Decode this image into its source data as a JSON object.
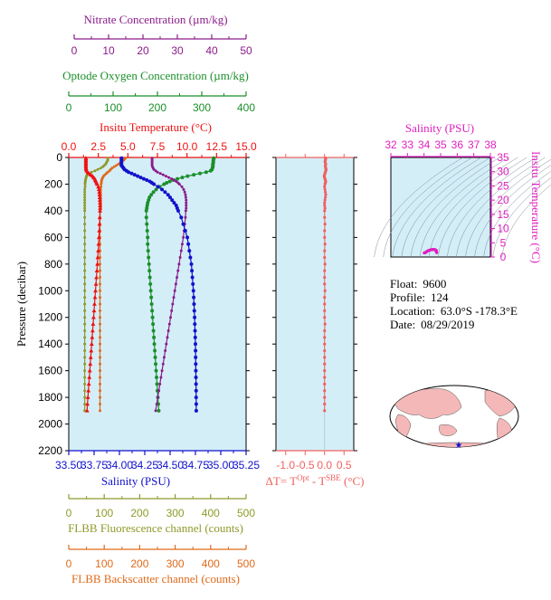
{
  "colors": {
    "nitrate": "#8b1c8b",
    "oxygen": "#1b8f2a",
    "temperature": "#ee1111",
    "salinity": "#1111cc",
    "fluorescence": "#8f9a2a",
    "backscatter": "#e06a1a",
    "delta": "#f06060",
    "ts_magenta": "#e020c0",
    "plot_bg": "#d4eef8",
    "land": "#f4b8b8",
    "ocean": "#ffffff"
  },
  "info": {
    "float_label": "Float:",
    "float_value": "9600",
    "profile_label": "Profile:",
    "profile_value": "124",
    "location_label": "Location:",
    "location_value": "63.0°S  -178.3°E",
    "date_label": "Date:",
    "date_value": "08/29/2019"
  },
  "chart_data": [
    {
      "type": "line",
      "name": "main_profiles",
      "ylabel": "Pressure (decibar)",
      "ylim": [
        2200,
        0
      ],
      "y_ticks": [
        "0",
        "200",
        "400",
        "600",
        "800",
        "1000",
        "1200",
        "1400",
        "1600",
        "1800",
        "2000",
        "2200"
      ],
      "axes": {
        "nitrate": {
          "title": "Nitrate Concentration (µm/kg)",
          "range": [
            0,
            50
          ],
          "ticks": [
            "0",
            "10",
            "20",
            "30",
            "40",
            "50"
          ]
        },
        "oxygen": {
          "title": "Optode Oxygen Concentration (µm/kg)",
          "range": [
            0,
            400
          ],
          "ticks": [
            "0",
            "100",
            "200",
            "300",
            "400"
          ]
        },
        "temperature": {
          "title": "Insitu Temperature (°C)",
          "range": [
            0,
            15
          ],
          "ticks": [
            "0.0",
            "2.5",
            "5.0",
            "7.5",
            "10.0",
            "12.5",
            "15.0"
          ]
        },
        "salinity": {
          "title": "Salinity (PSU)",
          "range": [
            33.5,
            35.25
          ],
          "ticks": [
            "33.50",
            "33.75",
            "34.00",
            "34.25",
            "34.50",
            "34.75",
            "35.00",
            "35.25"
          ]
        },
        "fluorescence": {
          "title": "FLBB Fluorescence channel (counts)",
          "range": [
            0,
            500
          ],
          "ticks": [
            "0",
            "100",
            "200",
            "300",
            "400",
            "500"
          ]
        },
        "backscatter": {
          "title": "FLBB Backscatter channel (counts)",
          "range": [
            0,
            500
          ],
          "ticks": [
            "0",
            "100",
            "200",
            "300",
            "400",
            "500"
          ]
        }
      },
      "pressure": [
        5,
        10,
        20,
        30,
        40,
        50,
        60,
        70,
        80,
        90,
        100,
        110,
        120,
        130,
        140,
        150,
        160,
        170,
        180,
        190,
        200,
        220,
        240,
        260,
        280,
        300,
        320,
        340,
        360,
        380,
        400,
        450,
        500,
        550,
        600,
        650,
        700,
        750,
        800,
        850,
        900,
        950,
        1000,
        1050,
        1100,
        1150,
        1200,
        1250,
        1300,
        1350,
        1400,
        1450,
        1500,
        1550,
        1600,
        1650,
        1700,
        1750,
        1800,
        1850,
        1900
      ],
      "series": {
        "temperature": [
          1.45,
          1.45,
          1.45,
          1.45,
          1.45,
          1.45,
          1.45,
          1.45,
          1.46,
          1.47,
          1.5,
          1.6,
          1.7,
          1.85,
          2.0,
          2.1,
          2.2,
          2.25,
          2.3,
          2.35,
          2.4,
          2.5,
          2.55,
          2.58,
          2.6,
          2.62,
          2.63,
          2.64,
          2.65,
          2.65,
          2.64,
          2.62,
          2.6,
          2.58,
          2.55,
          2.52,
          2.49,
          2.45,
          2.42,
          2.38,
          2.34,
          2.3,
          2.26,
          2.22,
          2.18,
          2.14,
          2.1,
          2.06,
          2.02,
          1.98,
          1.94,
          1.9,
          1.86,
          1.82,
          1.78,
          1.74,
          1.7,
          1.66,
          1.62,
          1.58,
          1.55
        ],
        "salinity": [
          34.02,
          34.02,
          34.02,
          34.02,
          34.02,
          34.02,
          34.02,
          34.03,
          34.04,
          34.05,
          34.07,
          34.09,
          34.12,
          34.15,
          34.18,
          34.21,
          34.24,
          34.27,
          34.3,
          34.32,
          34.34,
          34.38,
          34.42,
          34.45,
          34.48,
          34.5,
          34.52,
          34.54,
          34.56,
          34.57,
          34.58,
          34.61,
          34.63,
          34.65,
          34.67,
          34.68,
          34.69,
          34.7,
          34.71,
          34.715,
          34.72,
          34.725,
          34.73,
          34.733,
          34.736,
          34.739,
          34.742,
          34.744,
          34.746,
          34.748,
          34.75,
          34.751,
          34.752,
          34.753,
          34.754,
          34.755,
          34.756,
          34.757,
          34.757,
          34.758,
          34.758
        ],
        "oxygen": [
          327,
          327,
          326,
          326,
          326,
          325,
          325,
          325,
          324,
          323,
          320,
          310,
          296,
          282,
          268,
          256,
          245,
          236,
          228,
          221,
          215,
          205,
          197,
          191,
          186,
          182,
          180,
          178,
          177,
          176,
          175,
          175,
          176,
          177,
          178,
          178,
          179,
          180,
          181,
          182,
          183,
          184,
          185,
          186,
          187,
          188,
          189,
          190,
          191,
          192,
          193,
          194,
          195,
          196,
          197,
          198,
          199,
          200,
          201,
          202,
          203
        ],
        "nitrate": [
          23.5,
          23.5,
          23.5,
          23.5,
          23.5,
          23.5,
          23.5,
          23.6,
          23.8,
          24.0,
          24.5,
          25.0,
          25.8,
          26.6,
          27.4,
          28.2,
          29.0,
          29.7,
          30.3,
          30.8,
          31.2,
          31.9,
          32.4,
          32.7,
          32.9,
          33.0,
          33.1,
          33.1,
          33.1,
          33.1,
          33.0,
          32.9,
          32.7,
          32.5,
          32.3,
          32.0,
          31.7,
          31.4,
          31.1,
          30.8,
          30.5,
          30.2,
          29.9,
          29.6,
          29.3,
          29.0,
          28.7,
          28.4,
          28.1,
          27.8,
          27.5,
          27.2,
          26.9,
          26.6,
          26.3,
          26.0,
          25.7,
          25.4,
          25.1,
          24.8,
          24.5
        ],
        "fluorescence": [
          110,
          110,
          110,
          108,
          106,
          104,
          100,
          96,
          90,
          82,
          74,
          64,
          57,
          52,
          50,
          49,
          48,
          47,
          47,
          46,
          46,
          46,
          45,
          45,
          45,
          45,
          45,
          45,
          45,
          45,
          45,
          45,
          45,
          45,
          45,
          45,
          45,
          45,
          45,
          45,
          45,
          45,
          45,
          45,
          45,
          45,
          45,
          45,
          45,
          45,
          45,
          45,
          45,
          45,
          45,
          45,
          45,
          45,
          45,
          45,
          45
        ],
        "backscatter": [
          160,
          158,
          155,
          150,
          145,
          140,
          134,
          128,
          122,
          118,
          115,
          110,
          106,
          102,
          98,
          96,
          94,
          93,
          92,
          92,
          91,
          91,
          90,
          90,
          90,
          90,
          90,
          90,
          90,
          90,
          89,
          88,
          88,
          88,
          88,
          88,
          88,
          88,
          88,
          88,
          88,
          88,
          88,
          88,
          88,
          88,
          88,
          88,
          88,
          88,
          88,
          88,
          88,
          88,
          88,
          88,
          88,
          88,
          88,
          88,
          88
        ]
      }
    },
    {
      "type": "scatter",
      "name": "delta_temperature",
      "xlabel": "ΔT= T^Opt - T^SBE (°C)",
      "x_range": [
        -1.25,
        0.75
      ],
      "x_ticks": [
        "-1.0",
        "-0.5",
        "0.0",
        "0.5"
      ],
      "ylim": [
        2200,
        0
      ],
      "values": [
        0.02,
        0.03,
        0.02,
        0.01,
        0.02,
        0.03,
        0.02,
        0.02,
        0.03,
        0.04,
        0.03,
        0.02,
        0.01,
        0.0,
        -0.01,
        0.0,
        0.01,
        0.02,
        0.03,
        0.02,
        0.01,
        0.0,
        0.01,
        0.02,
        0.03,
        0.02,
        0.01,
        0.0,
        0.0,
        0.01,
        0.0,
        0.0,
        0.01,
        0.0,
        0.0,
        0.01,
        0.0,
        0.0,
        0.01,
        0.0,
        0.0,
        0.0,
        0.01,
        0.0,
        0.0,
        0.0,
        0.0,
        0.01,
        0.0,
        0.0,
        0.0,
        0.0,
        0.0,
        0.0,
        0.0,
        0.0,
        0.0,
        0.0,
        0.0,
        0.0,
        0.0
      ]
    },
    {
      "type": "line",
      "name": "ts_diagram",
      "xlabel": "Salinity (PSU)",
      "ylabel": "Insitu Temperature (°C)",
      "xlim": [
        32,
        38
      ],
      "ylim": [
        0,
        35
      ],
      "x_ticks": [
        "32",
        "33",
        "34",
        "35",
        "36",
        "37",
        "38"
      ],
      "y_ticks": [
        "0",
        "5",
        "10",
        "15",
        "20",
        "25",
        "30",
        "35"
      ]
    }
  ]
}
